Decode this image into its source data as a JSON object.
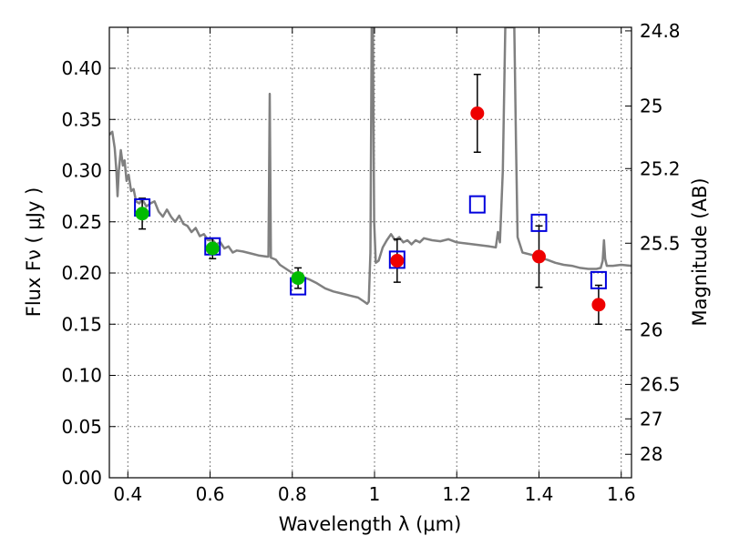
{
  "chart_data": {
    "type": "scatter",
    "xlabel": "Wavelength  λ (μm)",
    "ylabel": "Flux  Fν  ( μJy )",
    "y2label": "Magnitude (AB)",
    "xlim": [
      0.355,
      1.625
    ],
    "ylim": [
      0.0,
      0.44
    ],
    "grid": true,
    "x_ticks": [
      {
        "value": 0.4,
        "label": "0.4"
      },
      {
        "value": 0.6,
        "label": "0.6"
      },
      {
        "value": 0.8,
        "label": "0.8"
      },
      {
        "value": 1.0,
        "label": "1"
      },
      {
        "value": 1.2,
        "label": "1.2"
      },
      {
        "value": 1.4,
        "label": "1.4"
      },
      {
        "value": 1.6,
        "label": "1.6"
      }
    ],
    "y_ticks": [
      {
        "value": 0.0,
        "label": "0.00"
      },
      {
        "value": 0.05,
        "label": "0.05"
      },
      {
        "value": 0.1,
        "label": "0.10"
      },
      {
        "value": 0.15,
        "label": "0.15"
      },
      {
        "value": 0.2,
        "label": "0.20"
      },
      {
        "value": 0.25,
        "label": "0.25"
      },
      {
        "value": 0.3,
        "label": "0.30"
      },
      {
        "value": 0.35,
        "label": "0.35"
      },
      {
        "value": 0.4,
        "label": "0.40"
      }
    ],
    "y2_ticks": [
      {
        "mag": 24.8,
        "label": "24.8"
      },
      {
        "mag": 25.0,
        "label": "25"
      },
      {
        "mag": 25.2,
        "label": "25.2"
      },
      {
        "mag": 25.5,
        "label": "25.5"
      },
      {
        "mag": 26.0,
        "label": "26"
      },
      {
        "mag": 26.5,
        "label": "26.5"
      },
      {
        "mag": 27.0,
        "label": "27"
      },
      {
        "mag": 28.0,
        "label": "28"
      }
    ],
    "colors": {
      "model": "#808080",
      "green_points": "#00bb00",
      "red_points": "#ee0000",
      "model_squares": "#0000dd",
      "error_bars": "#000000",
      "grid": "#555555"
    },
    "model_spectrum": [
      [
        0.355,
        0.335
      ],
      [
        0.362,
        0.338
      ],
      [
        0.368,
        0.322
      ],
      [
        0.372,
        0.3
      ],
      [
        0.375,
        0.275
      ],
      [
        0.378,
        0.3
      ],
      [
        0.383,
        0.32
      ],
      [
        0.388,
        0.305
      ],
      [
        0.392,
        0.31
      ],
      [
        0.397,
        0.29
      ],
      [
        0.402,
        0.296
      ],
      [
        0.408,
        0.28
      ],
      [
        0.414,
        0.282
      ],
      [
        0.42,
        0.27
      ],
      [
        0.428,
        0.268
      ],
      [
        0.435,
        0.272
      ],
      [
        0.445,
        0.265
      ],
      [
        0.455,
        0.268
      ],
      [
        0.465,
        0.27
      ],
      [
        0.475,
        0.26
      ],
      [
        0.485,
        0.255
      ],
      [
        0.495,
        0.262
      ],
      [
        0.505,
        0.255
      ],
      [
        0.515,
        0.25
      ],
      [
        0.525,
        0.256
      ],
      [
        0.535,
        0.248
      ],
      [
        0.545,
        0.246
      ],
      [
        0.555,
        0.24
      ],
      [
        0.565,
        0.244
      ],
      [
        0.575,
        0.236
      ],
      [
        0.585,
        0.238
      ],
      [
        0.595,
        0.232
      ],
      [
        0.605,
        0.233
      ],
      [
        0.615,
        0.228
      ],
      [
        0.625,
        0.23
      ],
      [
        0.635,
        0.224
      ],
      [
        0.645,
        0.226
      ],
      [
        0.655,
        0.22
      ],
      [
        0.665,
        0.222
      ],
      [
        0.68,
        0.221
      ],
      [
        0.7,
        0.219
      ],
      [
        0.72,
        0.217
      ],
      [
        0.738,
        0.216
      ],
      [
        0.742,
        0.216
      ],
      [
        0.745,
        0.375
      ],
      [
        0.748,
        0.215
      ],
      [
        0.76,
        0.213
      ],
      [
        0.77,
        0.208
      ],
      [
        0.785,
        0.204
      ],
      [
        0.8,
        0.2
      ],
      [
        0.82,
        0.197
      ],
      [
        0.84,
        0.194
      ],
      [
        0.86,
        0.19
      ],
      [
        0.88,
        0.185
      ],
      [
        0.9,
        0.182
      ],
      [
        0.92,
        0.18
      ],
      [
        0.94,
        0.178
      ],
      [
        0.96,
        0.176
      ],
      [
        0.975,
        0.172
      ],
      [
        0.982,
        0.17
      ],
      [
        0.986,
        0.172
      ],
      [
        0.99,
        0.22
      ],
      [
        0.993,
        0.44
      ],
      [
        0.996,
        0.44
      ],
      [
        0.999,
        0.25
      ],
      [
        1.003,
        0.21
      ],
      [
        1.01,
        0.212
      ],
      [
        1.02,
        0.225
      ],
      [
        1.03,
        0.232
      ],
      [
        1.04,
        0.238
      ],
      [
        1.05,
        0.232
      ],
      [
        1.06,
        0.235
      ],
      [
        1.07,
        0.23
      ],
      [
        1.08,
        0.232
      ],
      [
        1.09,
        0.228
      ],
      [
        1.1,
        0.232
      ],
      [
        1.11,
        0.23
      ],
      [
        1.12,
        0.234
      ],
      [
        1.14,
        0.232
      ],
      [
        1.16,
        0.231
      ],
      [
        1.18,
        0.233
      ],
      [
        1.2,
        0.23
      ],
      [
        1.22,
        0.229
      ],
      [
        1.24,
        0.228
      ],
      [
        1.26,
        0.227
      ],
      [
        1.28,
        0.226
      ],
      [
        1.295,
        0.225
      ],
      [
        1.3,
        0.24
      ],
      [
        1.305,
        0.23
      ],
      [
        1.312,
        0.3
      ],
      [
        1.318,
        0.44
      ],
      [
        1.34,
        0.44
      ],
      [
        1.344,
        0.33
      ],
      [
        1.348,
        0.235
      ],
      [
        1.36,
        0.22
      ],
      [
        1.38,
        0.218
      ],
      [
        1.4,
        0.215
      ],
      [
        1.42,
        0.213
      ],
      [
        1.44,
        0.21
      ],
      [
        1.46,
        0.208
      ],
      [
        1.48,
        0.207
      ],
      [
        1.5,
        0.205
      ],
      [
        1.52,
        0.204
      ],
      [
        1.54,
        0.204
      ],
      [
        1.55,
        0.205
      ],
      [
        1.555,
        0.212
      ],
      [
        1.558,
        0.232
      ],
      [
        1.561,
        0.214
      ],
      [
        1.565,
        0.207
      ],
      [
        1.58,
        0.207
      ],
      [
        1.6,
        0.208
      ],
      [
        1.625,
        0.207
      ]
    ],
    "model_photometry": [
      {
        "x": 0.435,
        "y": 0.264
      },
      {
        "x": 0.606,
        "y": 0.226
      },
      {
        "x": 0.814,
        "y": 0.187
      },
      {
        "x": 1.055,
        "y": 0.213
      },
      {
        "x": 1.25,
        "y": 0.267
      },
      {
        "x": 1.4,
        "y": 0.249
      },
      {
        "x": 1.545,
        "y": 0.193
      }
    ],
    "observed_optical": [
      {
        "x": 0.435,
        "y": 0.258,
        "err": 0.015
      },
      {
        "x": 0.606,
        "y": 0.224,
        "err": 0.01
      },
      {
        "x": 0.814,
        "y": 0.195,
        "err": 0.01
      }
    ],
    "observed_nir": [
      {
        "x": 1.055,
        "y": 0.212,
        "err": 0.021
      },
      {
        "x": 1.25,
        "y": 0.356,
        "err": 0.038
      },
      {
        "x": 1.4,
        "y": 0.216,
        "err": 0.03
      },
      {
        "x": 1.545,
        "y": 0.169,
        "err": 0.019
      }
    ]
  }
}
